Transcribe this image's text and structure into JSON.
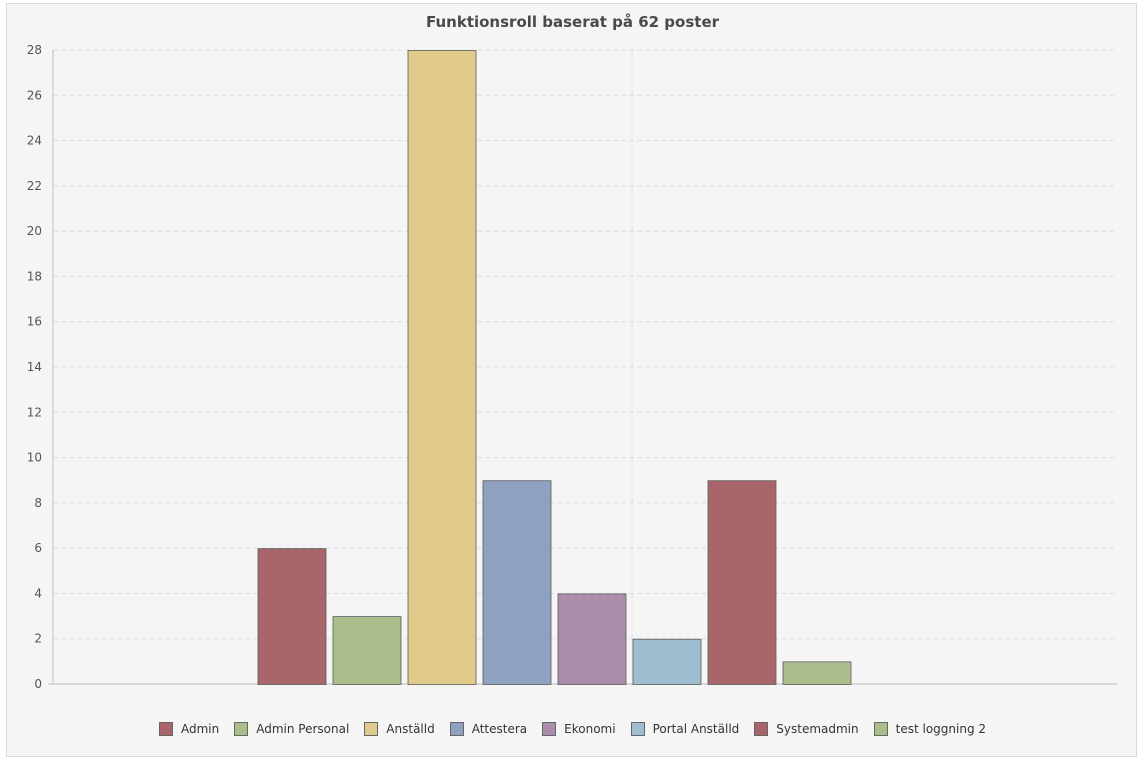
{
  "chart_data": {
    "type": "bar",
    "title": "Funktionsroll baserat på 62 poster",
    "xlabel": "",
    "ylabel": "",
    "ylim": [
      0,
      28
    ],
    "yticks": [
      0,
      2,
      4,
      6,
      8,
      10,
      12,
      14,
      16,
      18,
      20,
      22,
      24,
      26,
      28
    ],
    "grid": true,
    "legend_position": "bottom",
    "series": [
      {
        "name": "Admin",
        "value": 6,
        "color": "#a9666a"
      },
      {
        "name": "Admin Personal",
        "value": 3,
        "color": "#acbd8c"
      },
      {
        "name": "Anställd",
        "value": 28,
        "color": "#e0cb8b"
      },
      {
        "name": "Attestera",
        "value": 9,
        "color": "#8ea1c1"
      },
      {
        "name": "Ekonomi",
        "value": 4,
        "color": "#ab8dab"
      },
      {
        "name": "Portal Anställd",
        "value": 2,
        "color": "#9ebdcf"
      },
      {
        "name": "Systemadmin",
        "value": 9,
        "color": "#a9666a"
      },
      {
        "name": "test loggning 2",
        "value": 1,
        "color": "#acbd8c"
      }
    ]
  }
}
